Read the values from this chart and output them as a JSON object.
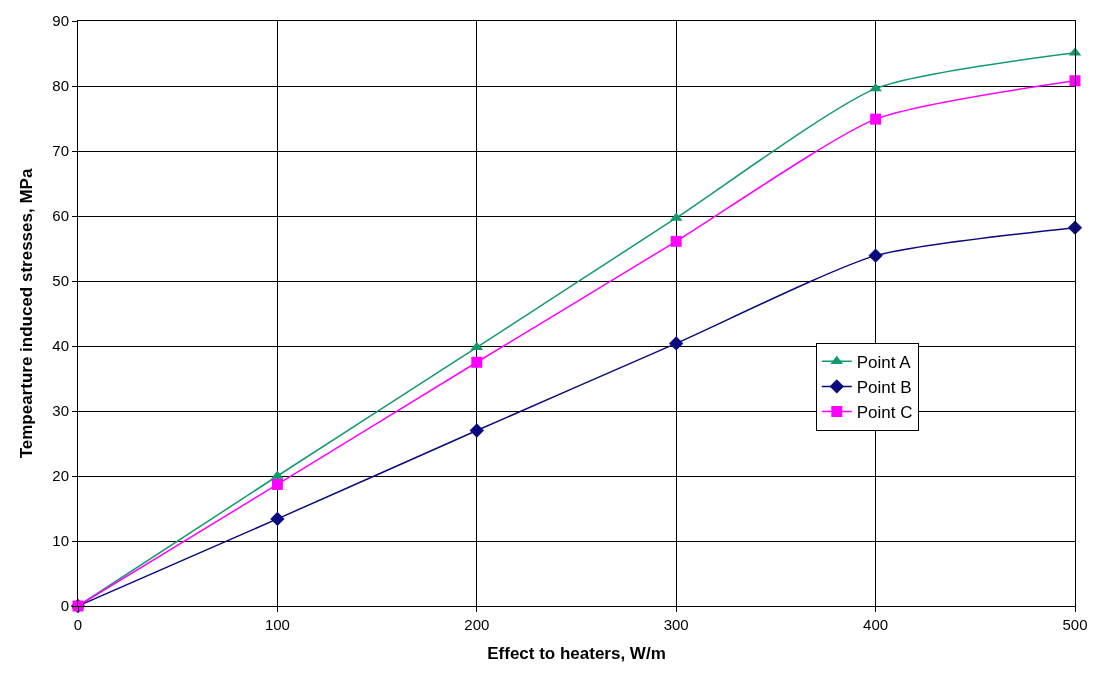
{
  "chart_data": {
    "type": "line",
    "xlabel": "Effect to heaters, W/m",
    "ylabel": "Tempearture induced stresses, MPa",
    "x": [
      0,
      100,
      200,
      300,
      400,
      500
    ],
    "series": [
      {
        "name": "Point A",
        "color": "#139a6c",
        "marker": "triangle",
        "values": [
          0,
          20,
          39.8,
          59.7,
          79.6,
          85.1
        ]
      },
      {
        "name": "Point B",
        "color": "#0a0a80",
        "marker": "diamond",
        "values": [
          0,
          13.4,
          27,
          40.4,
          53.9,
          58.2
        ]
      },
      {
        "name": "Point C",
        "color": "#ff00ff",
        "marker": "square",
        "values": [
          0,
          18.7,
          37.5,
          56.1,
          74.9,
          80.8
        ]
      }
    ],
    "xlim": [
      0,
      500
    ],
    "xticks": [
      0,
      100,
      200,
      300,
      400,
      500
    ],
    "ylim": [
      0,
      90
    ],
    "yticks": [
      0,
      10,
      20,
      30,
      40,
      50,
      60,
      70,
      80,
      90
    ],
    "grid": true,
    "legend": "right",
    "line_style": "solid"
  }
}
